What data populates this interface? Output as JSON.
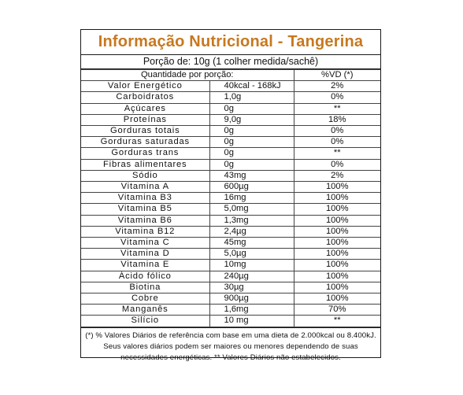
{
  "title": "Informação Nutricional - Tangerina",
  "title_color": "#c8781e",
  "portion": "Porção de: 10g (1 colher medida/sachê)",
  "header": {
    "quantity": "Quantidade por porção:",
    "vd": "%VD (*)"
  },
  "rows": [
    {
      "name": "Valor Energético",
      "qty": "40kcal - 168kJ",
      "vd": "2%"
    },
    {
      "name": "Carboidratos",
      "qty": "1,0g",
      "vd": "0%"
    },
    {
      "name": "Açúcares",
      "qty": "0g",
      "vd": "**"
    },
    {
      "name": "Proteínas",
      "qty": "9,0g",
      "vd": "18%"
    },
    {
      "name": "Gorduras totais",
      "qty": "0g",
      "vd": "0%"
    },
    {
      "name": "Gorduras saturadas",
      "qty": "0g",
      "vd": "0%"
    },
    {
      "name": "Gorduras trans",
      "qty": "0g",
      "vd": "**"
    },
    {
      "name": "Fibras alimentares",
      "qty": "0g",
      "vd": "0%"
    },
    {
      "name": "Sódio",
      "qty": "43mg",
      "vd": "2%"
    },
    {
      "name": "Vitamina A",
      "qty": "600µg",
      "vd": "100%"
    },
    {
      "name": "Vitamina B3",
      "qty": "16mg",
      "vd": "100%"
    },
    {
      "name": "Vitamina B5",
      "qty": "5,0mg",
      "vd": "100%"
    },
    {
      "name": "Vitamina B6",
      "qty": "1,3mg",
      "vd": "100%"
    },
    {
      "name": "Vitamina B12",
      "qty": "2,4µg",
      "vd": "100%"
    },
    {
      "name": "Vitamina C",
      "qty": "45mg",
      "vd": "100%"
    },
    {
      "name": "Vitamina D",
      "qty": "5,0µg",
      "vd": "100%"
    },
    {
      "name": "Vitamina E",
      "qty": "10mg",
      "vd": "100%"
    },
    {
      "name": "Ácido fólico",
      "qty": "240µg",
      "vd": "100%"
    },
    {
      "name": "Biotina",
      "qty": "30µg",
      "vd": "100%"
    },
    {
      "name": "Cobre",
      "qty": "900µg",
      "vd": "100%"
    },
    {
      "name": "Manganês",
      "qty": "1,6mg",
      "vd": "70%"
    },
    {
      "name": "Silício",
      "qty": "10 mg",
      "vd": "**"
    }
  ],
  "footnote": {
    "line1": "(*) % Valores Diários de referência com base em uma dieta de 2.000kcal ou 8.400kJ.",
    "line2": "Seus valores diários podem ser maiores ou menores dependendo de suas",
    "line3": "necessidades energéticas. ** Valores Diários não estabelecidos."
  }
}
